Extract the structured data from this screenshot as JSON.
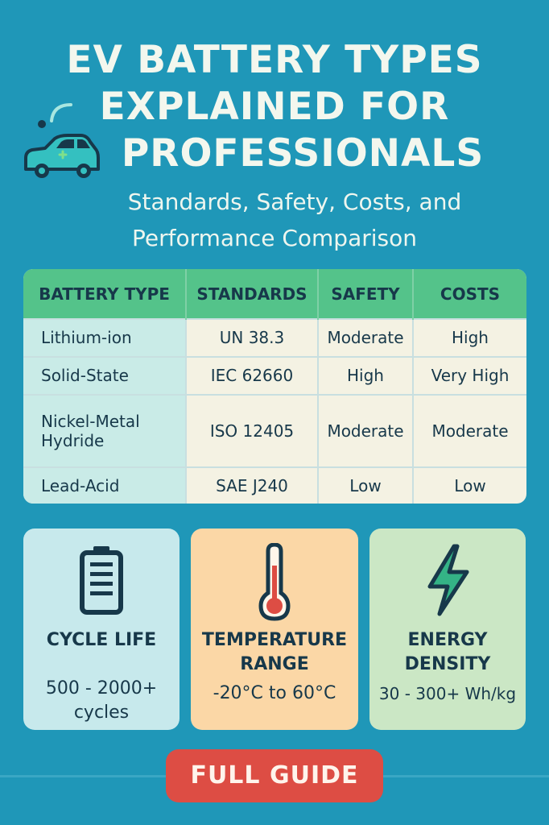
{
  "header": {
    "title_line1": "EV BATTERY TYPES",
    "title_line2": "EXPLAINED FOR",
    "title_line3": "PROFESSIONALS",
    "subtitle_line1": "Standards, Safety, Costs, and",
    "subtitle_line2": "Performance Comparison",
    "icon": "car-icon"
  },
  "table": {
    "columns": [
      "BATTERY TYPE",
      "STANDARDS",
      "SAFETY",
      "COSTS"
    ],
    "rows": [
      [
        "Lithium-ion",
        "UN 38.3",
        "Moderate",
        "High"
      ],
      [
        "Solid-State",
        "IEC 62660",
        "High",
        "Very High"
      ],
      [
        "Nickel-Metal Hydride",
        "ISO 12405",
        "Moderate",
        "Moderate"
      ],
      [
        "Lead-Acid",
        "SAE J240",
        "Low",
        "Low"
      ]
    ]
  },
  "cards": [
    {
      "title": "CYCLE LIFE",
      "value": "500 - 2000+ cycles",
      "icon": "battery-icon"
    },
    {
      "title": "TEMPERATURE RANGE",
      "value": "-20°C to 60°C",
      "icon": "thermometer-icon"
    },
    {
      "title": "ENERGY DENSITY",
      "value": "30 - 300+ Wh/kg",
      "icon": "lightning-icon"
    }
  ],
  "cta": {
    "label": "FULL GUIDE"
  },
  "colors": {
    "background": "#1f97b8",
    "table_header": "#54c38a",
    "cta": "#dd4d44",
    "card_cycle": "#c7e9ec",
    "card_temperature": "#fbd7a6",
    "card_energy": "#cbe7c5"
  }
}
